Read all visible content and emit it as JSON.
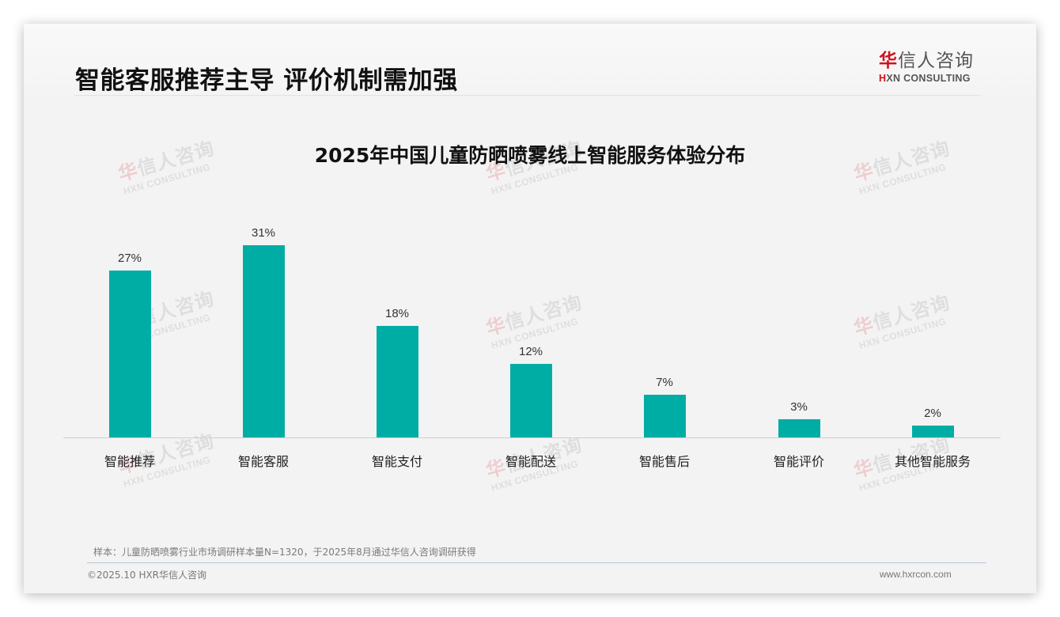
{
  "header": {
    "title": "智能客服推荐主导 评价机制需加强",
    "logo": {
      "cn_first": "华",
      "cn_rest": "信人咨询",
      "en_first": "H",
      "en_rest": "XN CONSULTING"
    }
  },
  "watermark": {
    "cn_first": "华",
    "cn_rest": "信人咨询",
    "en": "HXN CONSULTING"
  },
  "colors": {
    "bar": "#00ada5",
    "brand_red": "#d0121b",
    "text": "#111111"
  },
  "chart_data": {
    "type": "bar",
    "title": "2025年中国儿童防晒喷雾线上智能服务体验分布",
    "categories": [
      "智能推荐",
      "智能客服",
      "智能支付",
      "智能配送",
      "智能售后",
      "智能评价",
      "其他智能服务"
    ],
    "values": [
      27,
      31,
      18,
      12,
      7,
      3,
      2
    ],
    "value_labels": [
      "27%",
      "31%",
      "18%",
      "12%",
      "7%",
      "3%",
      "2%"
    ],
    "unit": "%",
    "xlabel": "",
    "ylabel": "",
    "ylim": [
      0,
      36
    ],
    "grid": false,
    "legend": "none"
  },
  "footer": {
    "note": "样本：儿童防晒喷雾行业市场调研样本量N=1320，于2025年8月通过华信人咨询调研获得",
    "copyright": "©2025.10 HXR华信人咨询",
    "website": "www.hxrcon.com"
  }
}
